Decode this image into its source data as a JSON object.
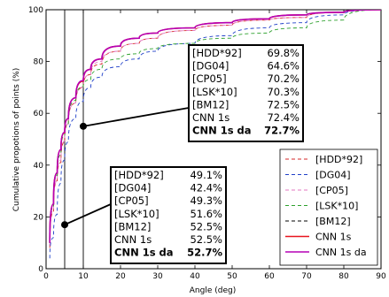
{
  "chart_data": {
    "type": "line",
    "title": "",
    "xlabel": "Angle (deg)",
    "ylabel": "Cumulative propotions of points (%)",
    "xlim": [
      0,
      90
    ],
    "ylim": [
      0,
      100
    ],
    "xticks": [
      "0",
      "10",
      "20",
      "30",
      "40",
      "50",
      "60",
      "70",
      "80",
      "90"
    ],
    "yticks": [
      "0",
      "20",
      "40",
      "60",
      "80",
      "100"
    ],
    "reference_lines_x": [
      5,
      10
    ],
    "grid": false,
    "legend_position": "bottom-right",
    "series": [
      {
        "name": "[HDD*92]",
        "color": "#d62728",
        "style": "dashed",
        "x": [
          1,
          2,
          3,
          4,
          5,
          6,
          8,
          10,
          12,
          15,
          20,
          25,
          30,
          40,
          50,
          60,
          70,
          80,
          90
        ],
        "y": [
          8,
          22,
          34,
          41,
          49,
          56,
          64,
          70,
          75,
          79,
          84,
          87,
          89,
          92,
          94,
          96,
          97,
          99,
          100
        ]
      },
      {
        "name": "[DG04]",
        "color": "#1f3fc8",
        "style": "dashed",
        "x": [
          1,
          2,
          3,
          4,
          5,
          6,
          8,
          10,
          12,
          15,
          20,
          25,
          30,
          40,
          50,
          60,
          70,
          80,
          90
        ],
        "y": [
          4,
          12,
          21,
          33,
          42,
          49,
          58,
          64.6,
          70,
          74,
          78,
          81,
          84,
          87,
          90,
          93,
          95,
          98,
          100
        ]
      },
      {
        "name": "[CP05]",
        "color": "#e377c2",
        "style": "dashed",
        "x": [
          1,
          2,
          3,
          4,
          5,
          6,
          8,
          10,
          12,
          15,
          20,
          25,
          30,
          40,
          50,
          60,
          70,
          80,
          90
        ],
        "y": [
          9,
          23,
          34,
          42,
          49.3,
          56,
          64,
          70.2,
          75,
          80,
          84,
          87,
          89,
          92,
          94,
          96,
          97,
          99,
          100
        ]
      },
      {
        "name": "[LSK*10]",
        "color": "#2ca02c",
        "style": "dashed",
        "x": [
          1,
          2,
          3,
          4,
          5,
          6,
          8,
          10,
          12,
          15,
          20,
          25,
          30,
          40,
          50,
          60,
          70,
          80,
          90
        ],
        "y": [
          10,
          24,
          36,
          44,
          51.6,
          56,
          65,
          70.3,
          73,
          77,
          81,
          83,
          85,
          87,
          89,
          91,
          93,
          96,
          100
        ]
      },
      {
        "name": "[BM12]",
        "color": "#000000",
        "style": "dashed",
        "x": [
          1,
          2,
          3,
          4,
          5,
          6,
          8,
          10,
          12,
          15,
          20,
          25,
          30,
          40,
          50,
          60,
          70,
          80,
          90
        ],
        "y": [
          10,
          25,
          37,
          46,
          52.5,
          58,
          66,
          72.5,
          77,
          81,
          86,
          89,
          91,
          93,
          95,
          96.5,
          98,
          99,
          100
        ]
      },
      {
        "name": "CNN 1s",
        "color": "#e8141e",
        "style": "solid",
        "x": [
          1,
          2,
          3,
          4,
          5,
          6,
          8,
          10,
          12,
          15,
          20,
          25,
          30,
          40,
          50,
          60,
          70,
          80,
          90
        ],
        "y": [
          10,
          25,
          37,
          46,
          52.5,
          58,
          66,
          72.4,
          77,
          81,
          86,
          89,
          91,
          93,
          95,
          96.5,
          98,
          99,
          100
        ]
      },
      {
        "name": "CNN 1s da",
        "color": "#b500b5",
        "style": "solid",
        "x": [
          1,
          2,
          3,
          4,
          5,
          6,
          8,
          10,
          12,
          15,
          20,
          25,
          30,
          40,
          50,
          60,
          70,
          80,
          90
        ],
        "y": [
          10,
          25,
          37,
          46,
          52.7,
          58,
          66,
          72.7,
          77,
          81,
          86,
          89,
          91,
          93,
          95,
          96.5,
          98,
          99,
          100
        ]
      }
    ],
    "annotations": [
      {
        "marker_x": 10,
        "marker_y": 55,
        "rows": [
          {
            "label": "[HDD*92]",
            "value": "69.8%",
            "bold": false
          },
          {
            "label": "[DG04]",
            "value": "64.6%",
            "bold": false
          },
          {
            "label": "[CP05]",
            "value": "70.2%",
            "bold": false
          },
          {
            "label": "[LSK*10]",
            "value": "70.3%",
            "bold": false
          },
          {
            "label": "[BM12]",
            "value": "72.5%",
            "bold": false
          },
          {
            "label": "CNN 1s",
            "value": "72.4%",
            "bold": false
          },
          {
            "label": "CNN 1s da",
            "value": "72.7%",
            "bold": true
          }
        ]
      },
      {
        "marker_x": 5,
        "marker_y": 17,
        "rows": [
          {
            "label": "[HDD*92]",
            "value": "49.1%",
            "bold": false
          },
          {
            "label": "[DG04]",
            "value": "42.4%",
            "bold": false
          },
          {
            "label": "[CP05]",
            "value": "49.3%",
            "bold": false
          },
          {
            "label": "[LSK*10]",
            "value": "51.6%",
            "bold": false
          },
          {
            "label": "[BM12]",
            "value": "52.5%",
            "bold": false
          },
          {
            "label": "CNN 1s",
            "value": "52.5%",
            "bold": false
          },
          {
            "label": "CNN 1s da",
            "value": "52.7%",
            "bold": true
          }
        ]
      }
    ]
  }
}
